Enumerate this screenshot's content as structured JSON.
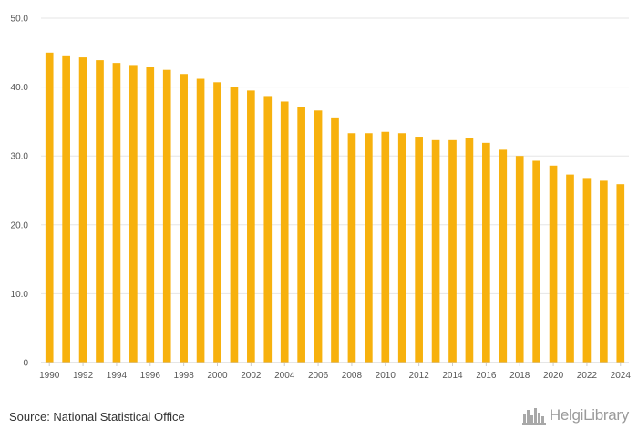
{
  "chart_data": {
    "type": "bar",
    "title": "",
    "xlabel": "",
    "ylabel": "",
    "categories": [
      "1990",
      "1991",
      "1992",
      "1993",
      "1994",
      "1995",
      "1996",
      "1997",
      "1998",
      "1999",
      "2000",
      "2001",
      "2002",
      "2003",
      "2004",
      "2005",
      "2006",
      "2007",
      "2008",
      "2009",
      "2010",
      "2011",
      "2012",
      "2013",
      "2014",
      "2015",
      "2016",
      "2017",
      "2018",
      "2019",
      "2020",
      "2021",
      "2022",
      "2023",
      "2024"
    ],
    "values": [
      45.0,
      44.6,
      44.3,
      43.9,
      43.5,
      43.2,
      42.9,
      42.5,
      41.9,
      41.2,
      40.7,
      40.0,
      39.5,
      38.7,
      37.9,
      37.1,
      36.6,
      35.6,
      33.3,
      33.3,
      33.5,
      33.3,
      32.8,
      32.3,
      32.3,
      32.6,
      31.9,
      30.9,
      30.0,
      29.3,
      28.6,
      27.3,
      26.8,
      26.4,
      25.9
    ],
    "x_tick_labels": [
      "1990",
      "1992",
      "1994",
      "1996",
      "1998",
      "2000",
      "2002",
      "2004",
      "2006",
      "2008",
      "2010",
      "2012",
      "2014",
      "2016",
      "2018",
      "2020",
      "2022",
      "2024"
    ],
    "y_tick_labels": [
      "0",
      "10.0",
      "20.0",
      "30.0",
      "40.0",
      "50.0"
    ],
    "y_ticks": [
      0,
      10,
      20,
      30,
      40,
      50
    ],
    "ylim": [
      0,
      50
    ],
    "grid": true,
    "legend": "none",
    "bar_color": "#f7b10d",
    "grid_color": "#e6e6e6"
  },
  "footer": {
    "source": "Source: National Statistical Office",
    "logo_text": "HelgiLibrary"
  }
}
